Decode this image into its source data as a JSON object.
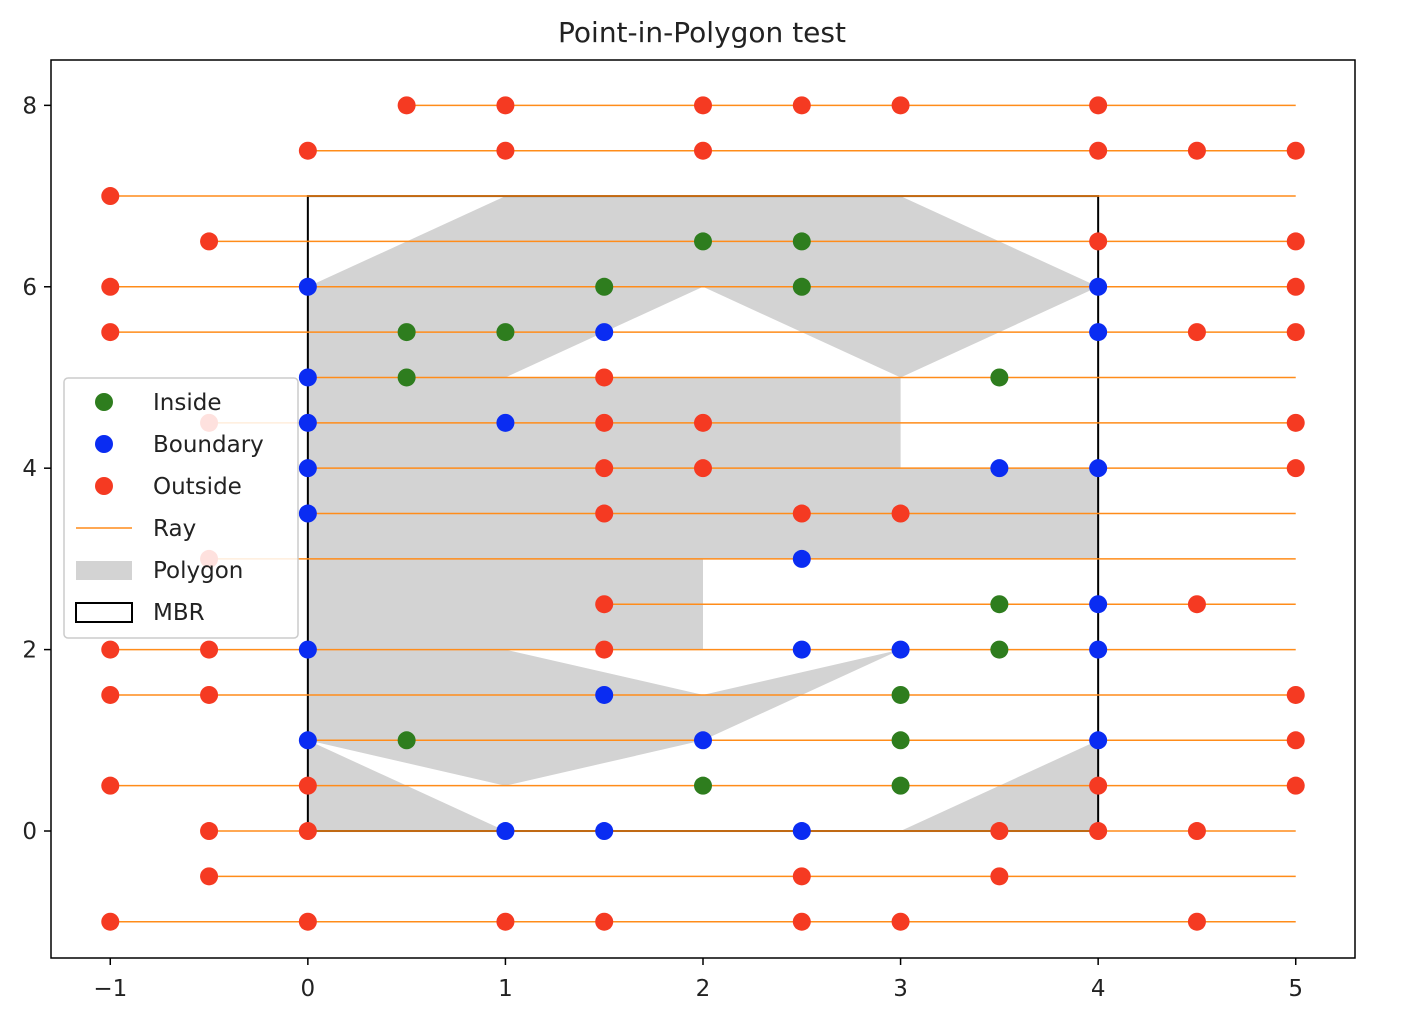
{
  "chart_data": {
    "type": "scatter",
    "title": "Point-in-Polygon test",
    "xlabel": "",
    "ylabel": "",
    "xlim": [
      -1.3,
      5.3
    ],
    "ylim": [
      -1.4,
      8.5
    ],
    "xticks": [
      -1,
      0,
      1,
      2,
      3,
      4,
      5
    ],
    "yticks": [
      0,
      2,
      4,
      6,
      8
    ],
    "grid": false,
    "legend_position": "center-left",
    "colors": {
      "inside": "#2e7d1e",
      "boundary": "#0a2cf2",
      "outside": "#f53a22",
      "ray": "#ff8c1a",
      "polygon": "#d3d3d3",
      "mbr": "#000000"
    },
    "legend": [
      "Inside",
      "Boundary",
      "Outside",
      "Ray",
      "Polygon",
      "MBR"
    ],
    "polygon": {
      "outer": [
        [
          0,
          0
        ],
        [
          4,
          0
        ],
        [
          4,
          3
        ],
        [
          2,
          3
        ],
        [
          2,
          2
        ],
        [
          1,
          2
        ],
        [
          1,
          5
        ],
        [
          3,
          5
        ],
        [
          3,
          4
        ],
        [
          4,
          4
        ],
        [
          4,
          6
        ],
        [
          3,
          7
        ],
        [
          1,
          7
        ],
        [
          0,
          6
        ]
      ],
      "hole": [
        [
          0,
          1
        ],
        [
          1,
          0.5
        ],
        [
          2,
          1
        ],
        [
          3,
          2
        ],
        [
          2,
          1.5
        ],
        [
          1,
          2
        ],
        [
          1,
          5
        ],
        [
          2,
          6
        ],
        [
          3,
          5
        ],
        [
          4,
          6
        ],
        [
          4,
          1
        ],
        [
          3,
          0
        ],
        [
          1,
          0
        ]
      ]
    },
    "mbr": {
      "xmin": 0,
      "xmax": 4,
      "ymin": 0,
      "ymax": 7
    },
    "series": [
      {
        "name": "Inside",
        "points": [
          [
            2,
            6.5
          ],
          [
            2.5,
            6.5
          ],
          [
            1.5,
            6
          ],
          [
            2.5,
            6
          ],
          [
            0.5,
            5.5
          ],
          [
            1,
            5.5
          ],
          [
            0.5,
            5
          ],
          [
            3.5,
            5
          ],
          [
            3.5,
            2.5
          ],
          [
            3.5,
            2
          ],
          [
            3,
            1.5
          ],
          [
            0.5,
            1
          ],
          [
            3,
            1
          ],
          [
            2,
            0.5
          ],
          [
            3,
            0.5
          ]
        ]
      },
      {
        "name": "Boundary",
        "points": [
          [
            0,
            6
          ],
          [
            4,
            6
          ],
          [
            1.5,
            5.5
          ],
          [
            4,
            5.5
          ],
          [
            0,
            5
          ],
          [
            0,
            4.5
          ],
          [
            1,
            4.5
          ],
          [
            0,
            4
          ],
          [
            3.5,
            4
          ],
          [
            4,
            4
          ],
          [
            0,
            3.5
          ],
          [
            2.5,
            3
          ],
          [
            4,
            2.5
          ],
          [
            0,
            2
          ],
          [
            2.5,
            2
          ],
          [
            3,
            2
          ],
          [
            4,
            2
          ],
          [
            1.5,
            1.5
          ],
          [
            0,
            1
          ],
          [
            2,
            1
          ],
          [
            4,
            1
          ],
          [
            1,
            0
          ],
          [
            1.5,
            0
          ],
          [
            2.5,
            0
          ]
        ]
      },
      {
        "name": "Outside",
        "points": [
          [
            0.5,
            8
          ],
          [
            1,
            8
          ],
          [
            2,
            8
          ],
          [
            2.5,
            8
          ],
          [
            3,
            8
          ],
          [
            4,
            8
          ],
          [
            0,
            7.5
          ],
          [
            1,
            7.5
          ],
          [
            2,
            7.5
          ],
          [
            4,
            7.5
          ],
          [
            4.5,
            7.5
          ],
          [
            5,
            7.5
          ],
          [
            -1,
            7
          ],
          [
            -0.5,
            6.5
          ],
          [
            4,
            6.5
          ],
          [
            5,
            6.5
          ],
          [
            -1,
            6
          ],
          [
            5,
            6
          ],
          [
            -1,
            5.5
          ],
          [
            4.5,
            5.5
          ],
          [
            5,
            5.5
          ],
          [
            1.5,
            5
          ],
          [
            -0.5,
            4.5
          ],
          [
            1.5,
            4.5
          ],
          [
            2,
            4.5
          ],
          [
            5,
            4.5
          ],
          [
            1.5,
            4
          ],
          [
            2,
            4
          ],
          [
            5,
            4
          ],
          [
            1.5,
            3.5
          ],
          [
            2.5,
            3.5
          ],
          [
            3,
            3.5
          ],
          [
            -0.5,
            3
          ],
          [
            1.5,
            2.5
          ],
          [
            4.5,
            2.5
          ],
          [
            -1,
            2
          ],
          [
            -0.5,
            2
          ],
          [
            1.5,
            2
          ],
          [
            -1,
            1.5
          ],
          [
            -0.5,
            1.5
          ],
          [
            5,
            1.5
          ],
          [
            5,
            1
          ],
          [
            -1,
            0.5
          ],
          [
            0,
            0.5
          ],
          [
            4,
            0.5
          ],
          [
            5,
            0.5
          ],
          [
            -0.5,
            0
          ],
          [
            0,
            0
          ],
          [
            3.5,
            0
          ],
          [
            4,
            0
          ],
          [
            4.5,
            0
          ],
          [
            -0.5,
            -0.5
          ],
          [
            2.5,
            -0.5
          ],
          [
            3.5,
            -0.5
          ],
          [
            -1,
            -1
          ],
          [
            0,
            -1
          ],
          [
            1,
            -1
          ],
          [
            1.5,
            -1
          ],
          [
            2.5,
            -1
          ],
          [
            3,
            -1
          ],
          [
            4.5,
            -1
          ]
        ]
      },
      {
        "name": "Ray",
        "segments": [
          [
            0.5,
            8
          ],
          [
            0,
            7.5
          ],
          [
            -1,
            7
          ],
          [
            -0.5,
            6.5
          ],
          [
            -1,
            6
          ],
          [
            -1,
            5.5
          ],
          [
            0,
            5
          ],
          [
            -0.5,
            4.5
          ],
          [
            0,
            4
          ],
          [
            0,
            3.5
          ],
          [
            -0.5,
            3
          ],
          [
            1.5,
            2.5
          ],
          [
            -1,
            2
          ],
          [
            -1,
            1.5
          ],
          [
            0,
            1
          ],
          [
            -1,
            0.5
          ],
          [
            -0.5,
            0
          ],
          [
            -0.5,
            -0.5
          ],
          [
            -1,
            -1
          ]
        ],
        "x_end": 5
      }
    ]
  }
}
